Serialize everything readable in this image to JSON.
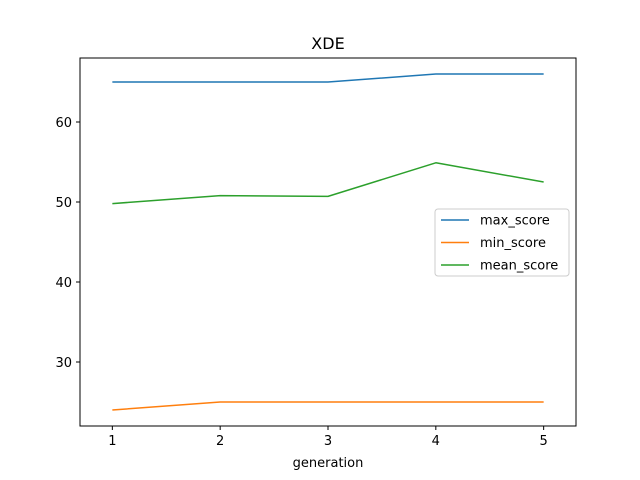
{
  "chart_data": {
    "type": "line",
    "title": "XDE",
    "xlabel": "generation",
    "ylabel": "",
    "x": [
      1,
      2,
      3,
      4,
      5
    ],
    "x_ticks": [
      "1",
      "2",
      "3",
      "4",
      "5"
    ],
    "y_ticks": [
      "30",
      "40",
      "50",
      "60"
    ],
    "xlim": [
      0.7,
      5.3
    ],
    "ylim": [
      22,
      68
    ],
    "grid": false,
    "legend_position": "center-right",
    "series": [
      {
        "name": "max_score",
        "color": "#1f77b4",
        "values": [
          65,
          65,
          65,
          66,
          66
        ]
      },
      {
        "name": "min_score",
        "color": "#ff7f0e",
        "values": [
          24,
          25,
          25,
          25,
          25
        ]
      },
      {
        "name": "mean_score",
        "color": "#2ca02c",
        "values": [
          49.8,
          50.8,
          50.7,
          54.9,
          52.5
        ]
      }
    ]
  }
}
